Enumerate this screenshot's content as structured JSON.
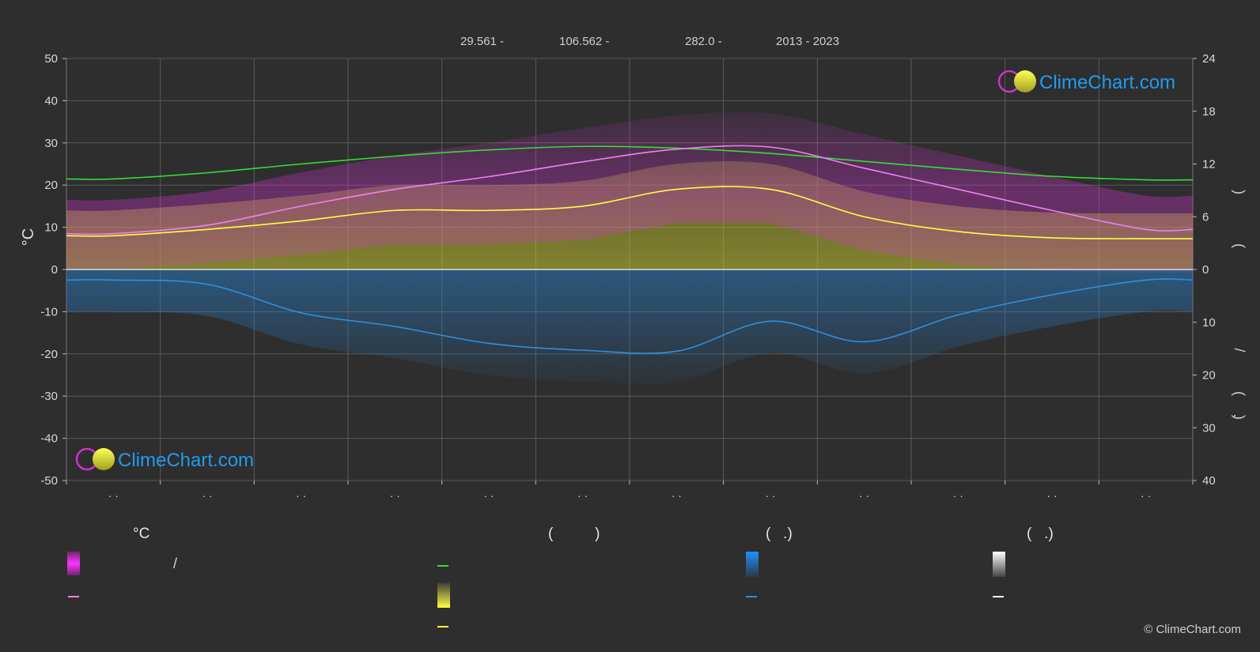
{
  "header": {
    "latitude": "29.561 -",
    "longitude": "106.562 -",
    "elevation": "282.0 -",
    "years": "2013 - 2023"
  },
  "watermark": "ClimeChart.com",
  "copyright": "© ClimeChart.com",
  "colors": {
    "background": "#2e2e2e",
    "temp_max": "#ee82ee",
    "temp_min": "#ffff44",
    "daylight": "#33dd33",
    "sunshine": "#d4d430",
    "rain": "#2f8fdf",
    "temp_band": "#dd33dd",
    "snow": "#ffffff",
    "brand_blue": "#1f9cf0"
  },
  "legend": {
    "temp_header": "°C",
    "sun_header": "(          )",
    "rain_header": "(   .)",
    "snow_header": "(   .)",
    "temp_slash": "/"
  },
  "chart_data": {
    "type": "line",
    "title": "",
    "ylabel_left": "°C",
    "ylim_left": [
      -50,
      50
    ],
    "yticks_left": [
      "50",
      "40",
      "30",
      "20",
      "10",
      "0",
      "-10",
      "-20",
      "-30",
      "-40",
      "-50"
    ],
    "ylim_right_top": [
      0,
      24
    ],
    "yticks_right_top": [
      "24",
      "18",
      "12",
      "6",
      "0"
    ],
    "ylim_right_bottom": [
      0,
      40
    ],
    "yticks_right_bottom": [
      "10",
      "20",
      "30",
      "40"
    ],
    "right_label_glyphs": [
      ")",
      "(",
      "/",
      "(",
      "·",
      ")"
    ],
    "months": [
      "·  ·",
      "·  ·",
      "·  ·",
      "·  ·",
      "·  ·",
      "·  ·",
      "·  ·",
      "·  ·",
      "·  ·",
      "·  ·",
      "·  ·",
      "·  ·"
    ],
    "grid": true,
    "series": [
      {
        "key": "daylight",
        "values": [
          10.3,
          11.0,
          12.0,
          12.9,
          13.6,
          14.0,
          13.8,
          13.2,
          12.3,
          11.4,
          10.6,
          10.2
        ]
      },
      {
        "key": "temp_max",
        "values": [
          8.5,
          10.5,
          15.0,
          19.0,
          22.0,
          25.5,
          28.5,
          29.0,
          24.0,
          19.0,
          14.0,
          9.5
        ]
      },
      {
        "key": "temp_min",
        "values": [
          8.0,
          9.5,
          11.5,
          14.0,
          14.0,
          15.0,
          19.0,
          19.0,
          12.5,
          9.0,
          7.5,
          7.3
        ]
      },
      {
        "key": "rain",
        "values": [
          2.0,
          2.8,
          8.2,
          10.8,
          14.0,
          15.3,
          15.5,
          9.8,
          13.7,
          8.6,
          4.8,
          2.0
        ]
      }
    ]
  }
}
